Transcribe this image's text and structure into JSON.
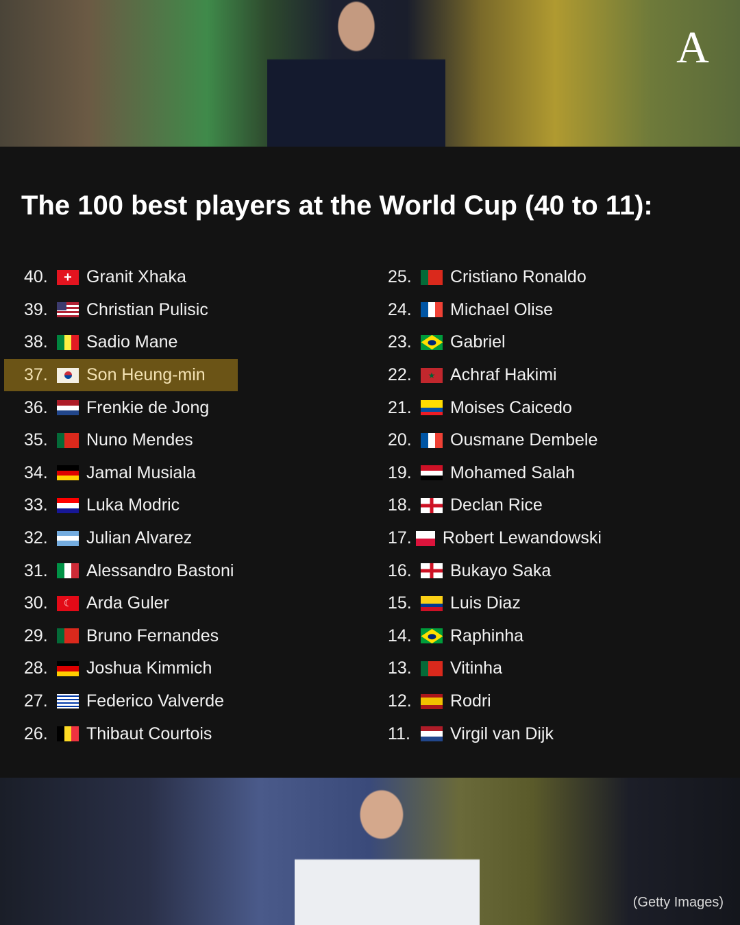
{
  "title": "The 100 best players at the World Cup (40 to 11):",
  "logo": "A",
  "credit": "(Getty Images)",
  "highlight_color": "#6b5416",
  "left": [
    {
      "rank": "40.",
      "name": "Granit Xhaka",
      "flag": "switzerland",
      "highlighted": false
    },
    {
      "rank": "39.",
      "name": "Christian Pulisic",
      "flag": "usa",
      "highlighted": false
    },
    {
      "rank": "38.",
      "name": "Sadio Mane",
      "flag": "senegal",
      "highlighted": false
    },
    {
      "rank": "37.",
      "name": "Son Heung-min",
      "flag": "south-korea",
      "highlighted": true
    },
    {
      "rank": "36.",
      "name": "Frenkie de Jong",
      "flag": "netherlands",
      "highlighted": false
    },
    {
      "rank": "35.",
      "name": "Nuno Mendes",
      "flag": "portugal",
      "highlighted": false
    },
    {
      "rank": "34.",
      "name": "Jamal Musiala",
      "flag": "germany",
      "highlighted": false
    },
    {
      "rank": "33.",
      "name": "Luka Modric",
      "flag": "croatia",
      "highlighted": false
    },
    {
      "rank": "32.",
      "name": "Julian Alvarez",
      "flag": "argentina",
      "highlighted": false
    },
    {
      "rank": "31.",
      "name": "Alessandro Bastoni",
      "flag": "italy",
      "highlighted": false
    },
    {
      "rank": "30.",
      "name": "Arda Guler",
      "flag": "turkey",
      "highlighted": false
    },
    {
      "rank": "29.",
      "name": "Bruno Fernandes",
      "flag": "portugal",
      "highlighted": false
    },
    {
      "rank": "28.",
      "name": "Joshua Kimmich",
      "flag": "germany",
      "highlighted": false
    },
    {
      "rank": "27.",
      "name": "Federico Valverde",
      "flag": "uruguay",
      "highlighted": false
    },
    {
      "rank": "26.",
      "name": "Thibaut Courtois",
      "flag": "belgium",
      "highlighted": false
    }
  ],
  "right": [
    {
      "rank": "25.",
      "name": "Cristiano Ronaldo",
      "flag": "portugal",
      "highlighted": false
    },
    {
      "rank": "24.",
      "name": "Michael Olise",
      "flag": "france",
      "highlighted": false
    },
    {
      "rank": "23.",
      "name": "Gabriel",
      "flag": "brazil",
      "highlighted": false
    },
    {
      "rank": "22.",
      "name": "Achraf Hakimi",
      "flag": "morocco",
      "highlighted": false
    },
    {
      "rank": "21.",
      "name": "Moises Caicedo",
      "flag": "ecuador",
      "highlighted": false
    },
    {
      "rank": "20.",
      "name": "Ousmane Dembele",
      "flag": "france",
      "highlighted": false
    },
    {
      "rank": "19.",
      "name": "Mohamed Salah",
      "flag": "egypt",
      "highlighted": false
    },
    {
      "rank": "18.",
      "name": "Declan Rice",
      "flag": "england",
      "highlighted": false
    },
    {
      "rank": "17.",
      "name": "Robert Lewandowski",
      "flag": "poland",
      "highlighted": false
    },
    {
      "rank": "16.",
      "name": "Bukayo Saka",
      "flag": "england",
      "highlighted": false
    },
    {
      "rank": "15.",
      "name": "Luis Diaz",
      "flag": "colombia",
      "highlighted": false
    },
    {
      "rank": "14.",
      "name": "Raphinha",
      "flag": "brazil",
      "highlighted": false
    },
    {
      "rank": "13.",
      "name": "Vitinha",
      "flag": "portugal",
      "highlighted": false
    },
    {
      "rank": "12.",
      "name": "Rodri",
      "flag": "spain",
      "highlighted": false
    },
    {
      "rank": "11.",
      "name": "Virgil van Dijk",
      "flag": "netherlands",
      "highlighted": false
    }
  ]
}
